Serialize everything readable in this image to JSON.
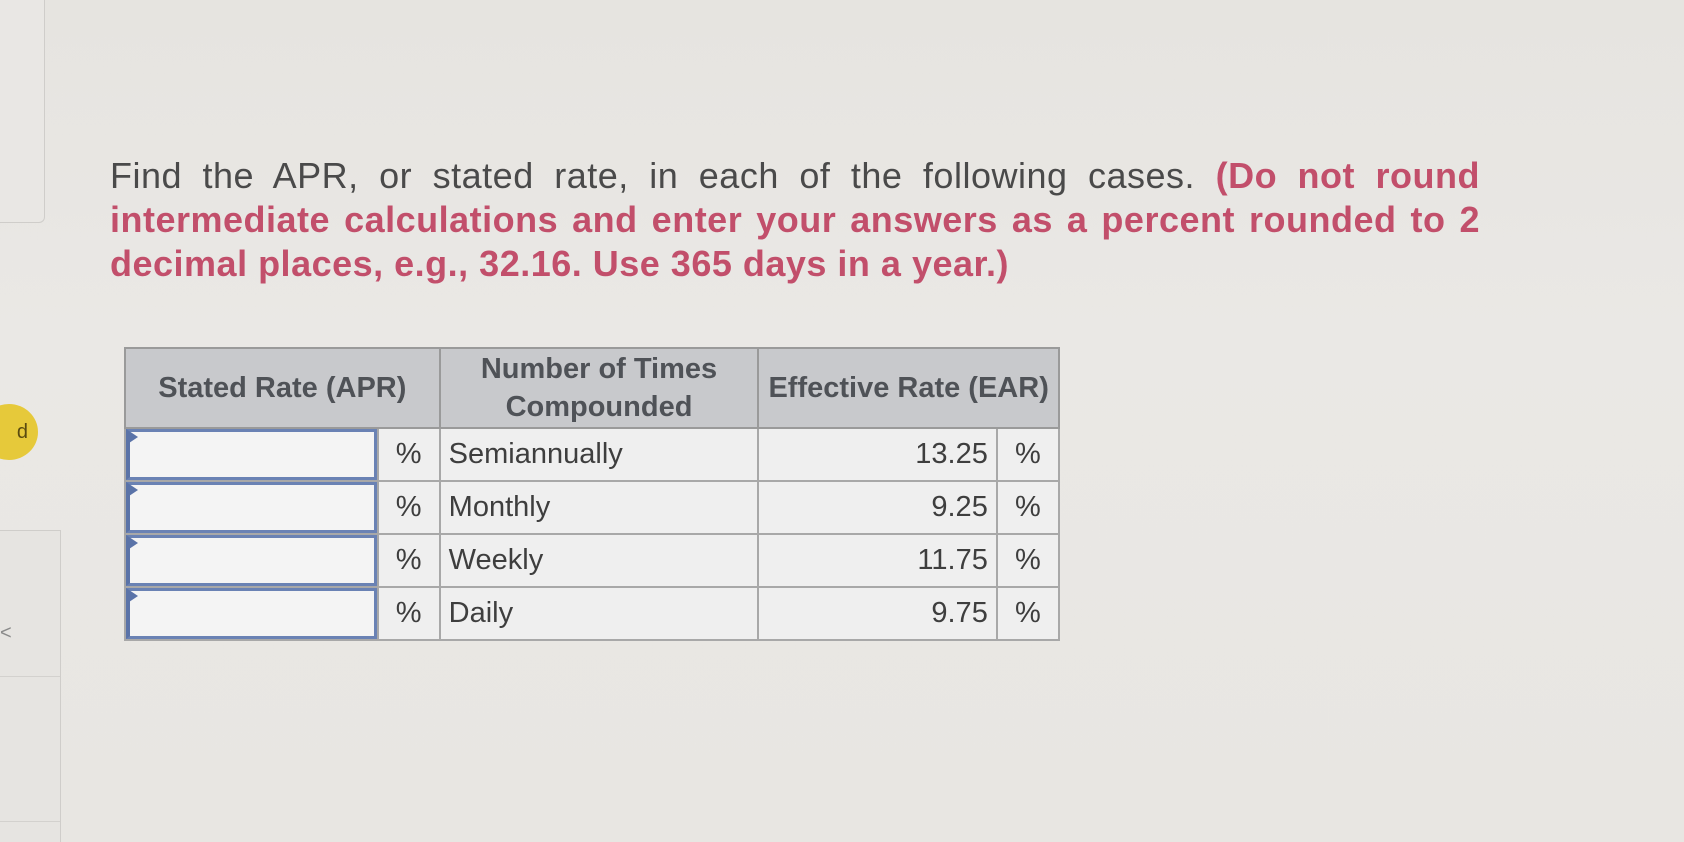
{
  "sidebar": {
    "badge_text": "d",
    "chevron_text": "<"
  },
  "question": {
    "prompt": "Find the APR, or stated rate, in each of the following cases. ",
    "instructions": "(Do not round intermediate calculations and enter your answers as a percent rounded to 2 decimal places, e.g., 32.16. Use 365 days in a year.)"
  },
  "table": {
    "headers": {
      "stated_rate": "Stated Rate (APR)",
      "times_compounded": "Number of Times Compounded",
      "effective_rate": "Effective Rate (EAR)"
    },
    "rows": [
      {
        "apr_value": "",
        "apr_unit": "%",
        "frequency": "Semiannually",
        "ear": "13.25",
        "ear_unit": "%"
      },
      {
        "apr_value": "",
        "apr_unit": "%",
        "frequency": "Monthly",
        "ear": "9.25",
        "ear_unit": "%"
      },
      {
        "apr_value": "",
        "apr_unit": "%",
        "frequency": "Weekly",
        "ear": "11.75",
        "ear_unit": "%"
      },
      {
        "apr_value": "",
        "apr_unit": "%",
        "frequency": "Daily",
        "ear": "9.75",
        "ear_unit": "%"
      }
    ]
  }
}
